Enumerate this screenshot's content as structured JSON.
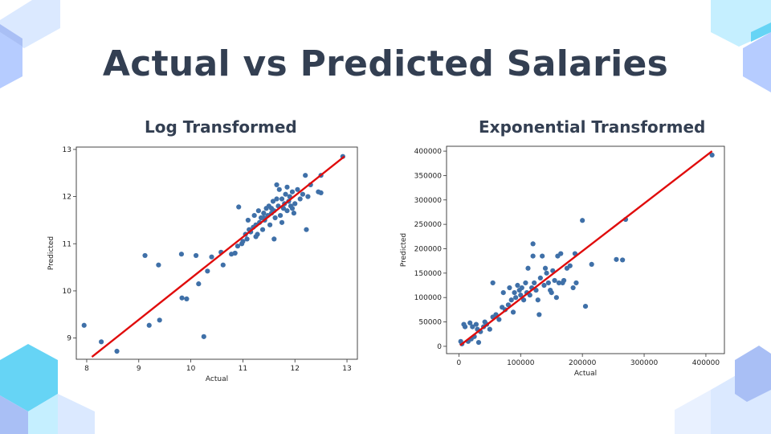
{
  "title": "Actual vs Predicted Salaries",
  "colors": {
    "title": "#333f52",
    "point": "#3f70a8",
    "line": "#e00c0c",
    "deco_light": "#dbe9ff",
    "deco_mid": "#b6ccff",
    "deco_blue": "#a9bff5",
    "deco_cyan": "#66d4f5",
    "deco_cyan_light": "#c5efff"
  },
  "chart_data": [
    {
      "type": "scatter",
      "title": "Log Transformed",
      "xlabel": "Actual",
      "ylabel": "Predicted",
      "xlim": [
        7.8,
        13.2
      ],
      "ylim": [
        8.55,
        13.05
      ],
      "xticks": [
        8,
        9,
        10,
        11,
        12,
        13
      ],
      "yticks": [
        9,
        10,
        11,
        12,
        13
      ],
      "grid": false,
      "points": [
        [
          7.95,
          9.27
        ],
        [
          8.28,
          8.92
        ],
        [
          8.58,
          8.72
        ],
        [
          9.12,
          10.75
        ],
        [
          9.2,
          9.27
        ],
        [
          9.38,
          10.55
        ],
        [
          9.4,
          9.38
        ],
        [
          9.82,
          10.78
        ],
        [
          9.83,
          9.85
        ],
        [
          9.92,
          9.83
        ],
        [
          10.1,
          10.75
        ],
        [
          10.15,
          10.15
        ],
        [
          10.25,
          9.03
        ],
        [
          10.32,
          10.42
        ],
        [
          10.4,
          10.72
        ],
        [
          10.58,
          10.82
        ],
        [
          10.62,
          10.55
        ],
        [
          10.78,
          10.78
        ],
        [
          10.85,
          10.8
        ],
        [
          10.9,
          10.95
        ],
        [
          10.92,
          11.78
        ],
        [
          10.98,
          11.0
        ],
        [
          11.0,
          11.05
        ],
        [
          11.05,
          11.2
        ],
        [
          11.08,
          11.1
        ],
        [
          11.1,
          11.5
        ],
        [
          11.12,
          11.3
        ],
        [
          11.15,
          11.25
        ],
        [
          11.2,
          11.35
        ],
        [
          11.22,
          11.6
        ],
        [
          11.25,
          11.4
        ],
        [
          11.28,
          11.2
        ],
        [
          11.3,
          11.7
        ],
        [
          11.32,
          11.45
        ],
        [
          11.35,
          11.55
        ],
        [
          11.38,
          11.3
        ],
        [
          11.4,
          11.65
        ],
        [
          11.42,
          11.5
        ],
        [
          11.45,
          11.75
        ],
        [
          11.48,
          11.6
        ],
        [
          11.5,
          11.8
        ],
        [
          11.52,
          11.4
        ],
        [
          11.55,
          11.65
        ],
        [
          11.58,
          11.9
        ],
        [
          11.6,
          11.7
        ],
        [
          11.62,
          11.55
        ],
        [
          11.65,
          12.25
        ],
        [
          11.68,
          11.8
        ],
        [
          11.7,
          12.15
        ],
        [
          11.72,
          11.6
        ],
        [
          11.75,
          11.95
        ],
        [
          11.78,
          11.75
        ],
        [
          11.8,
          11.85
        ],
        [
          11.82,
          12.05
        ],
        [
          11.85,
          11.7
        ],
        [
          11.88,
          11.9
        ],
        [
          11.9,
          12.0
        ],
        [
          11.92,
          11.8
        ],
        [
          11.95,
          12.1
        ],
        [
          11.98,
          11.65
        ],
        [
          12.0,
          11.85
        ],
        [
          12.05,
          12.15
        ],
        [
          12.1,
          11.95
        ],
        [
          12.15,
          12.05
        ],
        [
          12.2,
          12.45
        ],
        [
          12.22,
          11.3
        ],
        [
          12.25,
          12.0
        ],
        [
          12.3,
          12.25
        ],
        [
          12.45,
          12.1
        ],
        [
          12.5,
          12.08
        ],
        [
          12.5,
          12.45
        ],
        [
          12.92,
          12.85
        ],
        [
          11.6,
          11.1
        ],
        [
          11.25,
          11.15
        ],
        [
          11.75,
          11.45
        ],
        [
          11.55,
          11.75
        ],
        [
          11.85,
          12.2
        ],
        [
          11.4,
          11.55
        ],
        [
          11.65,
          11.95
        ],
        [
          11.95,
          11.75
        ]
      ],
      "fit_line": [
        [
          8.1,
          8.6
        ],
        [
          12.95,
          12.85
        ]
      ]
    },
    {
      "type": "scatter",
      "title": "Exponential Transformed",
      "xlabel": "Actual",
      "ylabel": "Predicted",
      "xlim": [
        -20000,
        430000
      ],
      "ylim": [
        -15000,
        410000
      ],
      "xticks": [
        0,
        100000,
        200000,
        300000,
        400000
      ],
      "yticks": [
        0,
        50000,
        100000,
        150000,
        200000,
        250000,
        300000,
        350000,
        400000
      ],
      "grid": false,
      "points": [
        [
          3000,
          10000
        ],
        [
          5000,
          5000
        ],
        [
          8000,
          45000
        ],
        [
          10000,
          40000
        ],
        [
          15000,
          10000
        ],
        [
          18000,
          48000
        ],
        [
          20000,
          15000
        ],
        [
          22000,
          40000
        ],
        [
          25000,
          20000
        ],
        [
          28000,
          45000
        ],
        [
          30000,
          35000
        ],
        [
          32000,
          8000
        ],
        [
          35000,
          30000
        ],
        [
          40000,
          40000
        ],
        [
          42000,
          50000
        ],
        [
          45000,
          45000
        ],
        [
          50000,
          35000
        ],
        [
          55000,
          60000
        ],
        [
          55000,
          130000
        ],
        [
          60000,
          65000
        ],
        [
          65000,
          55000
        ],
        [
          70000,
          80000
        ],
        [
          72000,
          110000
        ],
        [
          75000,
          75000
        ],
        [
          80000,
          85000
        ],
        [
          82000,
          120000
        ],
        [
          85000,
          95000
        ],
        [
          88000,
          70000
        ],
        [
          90000,
          110000
        ],
        [
          92000,
          100000
        ],
        [
          95000,
          125000
        ],
        [
          98000,
          115000
        ],
        [
          100000,
          105000
        ],
        [
          102000,
          120000
        ],
        [
          105000,
          95000
        ],
        [
          108000,
          130000
        ],
        [
          110000,
          110000
        ],
        [
          112000,
          160000
        ],
        [
          115000,
          105000
        ],
        [
          118000,
          120000
        ],
        [
          120000,
          210000
        ],
        [
          120000,
          185000
        ],
        [
          122000,
          130000
        ],
        [
          125000,
          115000
        ],
        [
          128000,
          95000
        ],
        [
          130000,
          65000
        ],
        [
          132000,
          140000
        ],
        [
          135000,
          185000
        ],
        [
          138000,
          125000
        ],
        [
          140000,
          160000
        ],
        [
          142000,
          150000
        ],
        [
          145000,
          130000
        ],
        [
          148000,
          115000
        ],
        [
          150000,
          110000
        ],
        [
          152000,
          155000
        ],
        [
          155000,
          135000
        ],
        [
          158000,
          100000
        ],
        [
          160000,
          185000
        ],
        [
          162000,
          130000
        ],
        [
          165000,
          190000
        ],
        [
          168000,
          130000
        ],
        [
          170000,
          135000
        ],
        [
          175000,
          160000
        ],
        [
          180000,
          165000
        ],
        [
          185000,
          120000
        ],
        [
          188000,
          190000
        ],
        [
          190000,
          130000
        ],
        [
          200000,
          258000
        ],
        [
          205000,
          82000
        ],
        [
          215000,
          168000
        ],
        [
          255000,
          178000
        ],
        [
          265000,
          177000
        ],
        [
          270000,
          260000
        ],
        [
          410000,
          392000
        ]
      ],
      "fit_line": [
        [
          2000,
          2000
        ],
        [
          410000,
          400000
        ]
      ]
    }
  ]
}
